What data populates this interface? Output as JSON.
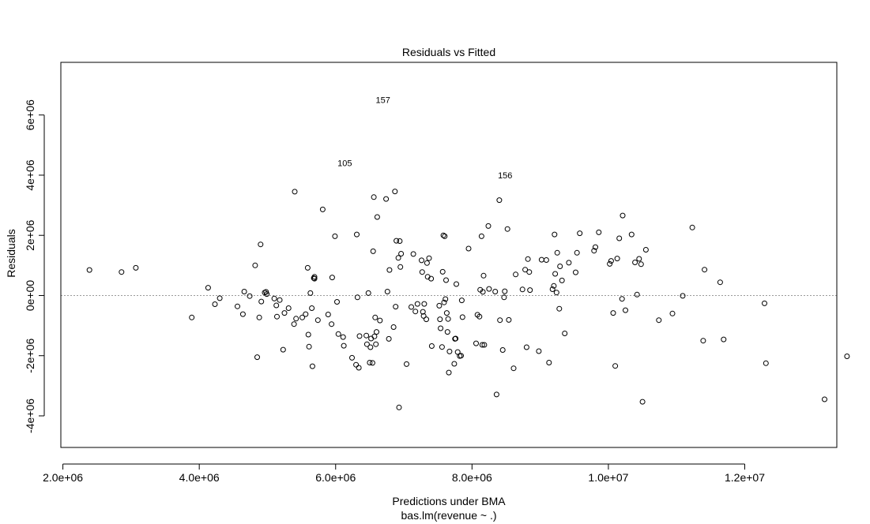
{
  "chart_data": {
    "type": "scatter",
    "title": "Residuals vs Fitted",
    "xlabel": "Predictions under BMA",
    "subtitle": "bas.lm(revenue ~ .)",
    "ylabel": "Residuals",
    "xlim": [
      1970000,
      13350000
    ],
    "ylim": [
      -5050000,
      7750000
    ],
    "x_ticks": [
      2000000,
      4000000,
      6000000,
      8000000,
      10000000,
      12000000
    ],
    "x_tick_labels": [
      "2.0e+06",
      "4.0e+06",
      "6.0e+06",
      "8.0e+06",
      "1.0e+07",
      "1.2e+07"
    ],
    "y_ticks": [
      -4000000,
      -2000000,
      0,
      2000000,
      4000000,
      6000000
    ],
    "y_tick_labels": [
      "-4e+06",
      "-2e+06",
      "0e+00",
      "2e+06",
      "4e+06",
      "6e+06"
    ],
    "reference_line": 0,
    "point_labels": [
      {
        "label": "157",
        "x": 6530000,
        "y": 6500000
      },
      {
        "label": "105",
        "x": 5970000,
        "y": 4400000
      },
      {
        "label": "156",
        "x": 8650000,
        "y": 4000000
      }
    ],
    "points": [
      [
        2390000,
        850000
      ],
      [
        2860000,
        780000
      ],
      [
        3070000,
        920000
      ],
      [
        3890000,
        -730000
      ],
      [
        4130000,
        260000
      ],
      [
        4230000,
        -290000
      ],
      [
        4300000,
        -90000
      ],
      [
        4560000,
        -360000
      ],
      [
        4640000,
        -620000
      ],
      [
        4660000,
        130000
      ],
      [
        4740000,
        -20000
      ],
      [
        4820000,
        1000000
      ],
      [
        4850000,
        -2050000
      ],
      [
        4880000,
        -730000
      ],
      [
        4900000,
        1700000
      ],
      [
        4910000,
        -200000
      ],
      [
        4960000,
        100000
      ],
      [
        4980000,
        120000
      ],
      [
        4990000,
        50000
      ],
      [
        5100000,
        -100000
      ],
      [
        5130000,
        -330000
      ],
      [
        5140000,
        -700000
      ],
      [
        5180000,
        -150000
      ],
      [
        5230000,
        -1800000
      ],
      [
        5250000,
        -580000
      ],
      [
        5310000,
        -420000
      ],
      [
        5390000,
        -950000
      ],
      [
        5400000,
        3450000
      ],
      [
        5420000,
        -770000
      ],
      [
        5510000,
        -730000
      ],
      [
        5560000,
        -620000
      ],
      [
        5590000,
        920000
      ],
      [
        5600000,
        -1300000
      ],
      [
        5610000,
        -1700000
      ],
      [
        5630000,
        80000
      ],
      [
        5650000,
        -420000
      ],
      [
        5660000,
        -2350000
      ],
      [
        5680000,
        580000
      ],
      [
        5690000,
        620000
      ],
      [
        5690000,
        560000
      ],
      [
        5740000,
        -820000
      ],
      [
        5810000,
        2860000
      ],
      [
        5890000,
        -630000
      ],
      [
        5940000,
        -950000
      ],
      [
        5950000,
        600000
      ],
      [
        5990000,
        1970000
      ],
      [
        6020000,
        -210000
      ],
      [
        6040000,
        -1280000
      ],
      [
        6110000,
        -1380000
      ],
      [
        6120000,
        -1670000
      ],
      [
        6240000,
        -2070000
      ],
      [
        6300000,
        -2300000
      ],
      [
        6310000,
        2030000
      ],
      [
        6320000,
        -60000
      ],
      [
        6340000,
        -2400000
      ],
      [
        6350000,
        -1350000
      ],
      [
        6450000,
        -1330000
      ],
      [
        6460000,
        -1620000
      ],
      [
        6480000,
        80000
      ],
      [
        6500000,
        -2230000
      ],
      [
        6510000,
        -1720000
      ],
      [
        6520000,
        -1430000
      ],
      [
        6540000,
        -2240000
      ],
      [
        6550000,
        1470000
      ],
      [
        6560000,
        3270000
      ],
      [
        6570000,
        -1360000
      ],
      [
        6580000,
        -730000
      ],
      [
        6590000,
        -1620000
      ],
      [
        6600000,
        -1210000
      ],
      [
        6610000,
        2610000
      ],
      [
        6650000,
        -830000
      ],
      [
        6740000,
        3210000
      ],
      [
        6760000,
        130000
      ],
      [
        6780000,
        -1440000
      ],
      [
        6790000,
        850000
      ],
      [
        6850000,
        -1050000
      ],
      [
        6870000,
        3460000
      ],
      [
        6880000,
        -370000
      ],
      [
        6890000,
        1820000
      ],
      [
        6920000,
        1250000
      ],
      [
        6930000,
        -3720000
      ],
      [
        6940000,
        1810000
      ],
      [
        6950000,
        950000
      ],
      [
        6960000,
        1390000
      ],
      [
        7040000,
        -2280000
      ],
      [
        7110000,
        -380000
      ],
      [
        7140000,
        1380000
      ],
      [
        7170000,
        -530000
      ],
      [
        7200000,
        -280000
      ],
      [
        7260000,
        1170000
      ],
      [
        7270000,
        780000
      ],
      [
        7280000,
        -540000
      ],
      [
        7290000,
        -680000
      ],
      [
        7300000,
        -280000
      ],
      [
        7330000,
        -790000
      ],
      [
        7340000,
        1080000
      ],
      [
        7350000,
        620000
      ],
      [
        7370000,
        1240000
      ],
      [
        7400000,
        560000
      ],
      [
        7410000,
        -1680000
      ],
      [
        7520000,
        -340000
      ],
      [
        7530000,
        -790000
      ],
      [
        7540000,
        -1090000
      ],
      [
        7560000,
        -1710000
      ],
      [
        7570000,
        790000
      ],
      [
        7580000,
        2000000
      ],
      [
        7590000,
        -230000
      ],
      [
        7600000,
        1970000
      ],
      [
        7610000,
        -120000
      ],
      [
        7620000,
        510000
      ],
      [
        7630000,
        -580000
      ],
      [
        7640000,
        -1210000
      ],
      [
        7650000,
        -780000
      ],
      [
        7660000,
        -2560000
      ],
      [
        7670000,
        -1860000
      ],
      [
        7740000,
        -2270000
      ],
      [
        7750000,
        -1440000
      ],
      [
        7760000,
        -1430000
      ],
      [
        7770000,
        380000
      ],
      [
        7790000,
        -1880000
      ],
      [
        7820000,
        -2010000
      ],
      [
        7840000,
        -2000000
      ],
      [
        7850000,
        -160000
      ],
      [
        7860000,
        -720000
      ],
      [
        7950000,
        1560000
      ],
      [
        8060000,
        -1590000
      ],
      [
        8080000,
        -640000
      ],
      [
        8110000,
        -700000
      ],
      [
        8120000,
        190000
      ],
      [
        8140000,
        1970000
      ],
      [
        8150000,
        -1640000
      ],
      [
        8160000,
        120000
      ],
      [
        8170000,
        660000
      ],
      [
        8180000,
        -1640000
      ],
      [
        8240000,
        2310000
      ],
      [
        8250000,
        220000
      ],
      [
        8340000,
        130000
      ],
      [
        8360000,
        -3290000
      ],
      [
        8400000,
        3170000
      ],
      [
        8410000,
        -820000
      ],
      [
        8450000,
        -1810000
      ],
      [
        8470000,
        -60000
      ],
      [
        8480000,
        140000
      ],
      [
        8520000,
        2210000
      ],
      [
        8540000,
        -810000
      ],
      [
        8610000,
        -2420000
      ],
      [
        8640000,
        700000
      ],
      [
        8740000,
        200000
      ],
      [
        8780000,
        860000
      ],
      [
        8800000,
        -1720000
      ],
      [
        8820000,
        1210000
      ],
      [
        8840000,
        780000
      ],
      [
        8850000,
        180000
      ],
      [
        8980000,
        -1850000
      ],
      [
        9020000,
        1190000
      ],
      [
        9090000,
        1180000
      ],
      [
        9130000,
        -2230000
      ],
      [
        9180000,
        210000
      ],
      [
        9200000,
        320000
      ],
      [
        9210000,
        2030000
      ],
      [
        9220000,
        720000
      ],
      [
        9240000,
        100000
      ],
      [
        9250000,
        1420000
      ],
      [
        9280000,
        -440000
      ],
      [
        9290000,
        970000
      ],
      [
        9320000,
        500000
      ],
      [
        9360000,
        -1260000
      ],
      [
        9420000,
        1090000
      ],
      [
        9520000,
        770000
      ],
      [
        9540000,
        1420000
      ],
      [
        9580000,
        2070000
      ],
      [
        9790000,
        1490000
      ],
      [
        9810000,
        1610000
      ],
      [
        9860000,
        2100000
      ],
      [
        10020000,
        1050000
      ],
      [
        10040000,
        1150000
      ],
      [
        10070000,
        -580000
      ],
      [
        10100000,
        -2340000
      ],
      [
        10130000,
        1230000
      ],
      [
        10160000,
        1900000
      ],
      [
        10200000,
        -110000
      ],
      [
        10210000,
        2660000
      ],
      [
        10250000,
        -490000
      ],
      [
        10340000,
        2030000
      ],
      [
        10390000,
        1100000
      ],
      [
        10420000,
        30000
      ],
      [
        10450000,
        1220000
      ],
      [
        10480000,
        1040000
      ],
      [
        10500000,
        -3530000
      ],
      [
        10550000,
        1520000
      ],
      [
        10740000,
        -820000
      ],
      [
        10940000,
        -600000
      ],
      [
        11090000,
        -10000
      ],
      [
        11230000,
        2260000
      ],
      [
        11390000,
        -1500000
      ],
      [
        11410000,
        860000
      ],
      [
        11640000,
        440000
      ],
      [
        11690000,
        -1460000
      ],
      [
        12290000,
        -260000
      ],
      [
        12310000,
        -2250000
      ],
      [
        13170000,
        -3450000
      ],
      [
        13500000,
        -2020000
      ]
    ]
  }
}
